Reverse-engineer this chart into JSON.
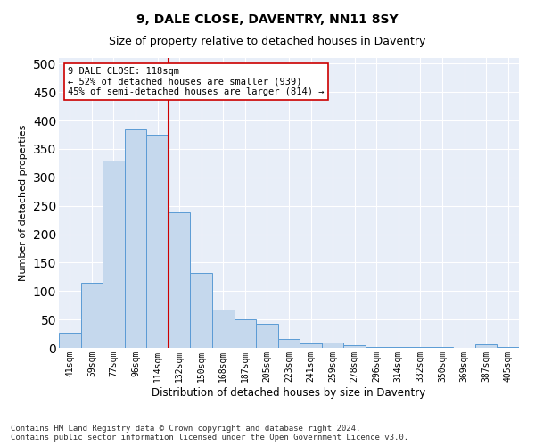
{
  "title": "9, DALE CLOSE, DAVENTRY, NN11 8SY",
  "subtitle": "Size of property relative to detached houses in Daventry",
  "xlabel": "Distribution of detached houses by size in Daventry",
  "ylabel": "Number of detached properties",
  "categories": [
    "41sqm",
    "59sqm",
    "77sqm",
    "96sqm",
    "114sqm",
    "132sqm",
    "150sqm",
    "168sqm",
    "187sqm",
    "205sqm",
    "223sqm",
    "241sqm",
    "259sqm",
    "278sqm",
    "296sqm",
    "314sqm",
    "332sqm",
    "350sqm",
    "369sqm",
    "387sqm",
    "405sqm"
  ],
  "values": [
    27,
    115,
    330,
    385,
    375,
    238,
    132,
    68,
    50,
    43,
    15,
    8,
    10,
    5,
    2,
    1,
    1,
    1,
    0,
    6,
    1
  ],
  "bar_color": "#c5d8ed",
  "bar_edge_color": "#5b9bd5",
  "vline_index": 4,
  "vline_color": "#cc0000",
  "annotation_text": "9 DALE CLOSE: 118sqm\n← 52% of detached houses are smaller (939)\n45% of semi-detached houses are larger (814) →",
  "annotation_box_color": "#ffffff",
  "annotation_box_edge": "#cc0000",
  "annotation_fontsize": 7.5,
  "title_fontsize": 10,
  "subtitle_fontsize": 9,
  "xlabel_fontsize": 8.5,
  "ylabel_fontsize": 8,
  "tick_fontsize": 7,
  "footer_text": "Contains HM Land Registry data © Crown copyright and database right 2024.\nContains public sector information licensed under the Open Government Licence v3.0.",
  "footer_fontsize": 6.5,
  "ylim": [
    0,
    510
  ],
  "plot_background": "#e8eef8"
}
